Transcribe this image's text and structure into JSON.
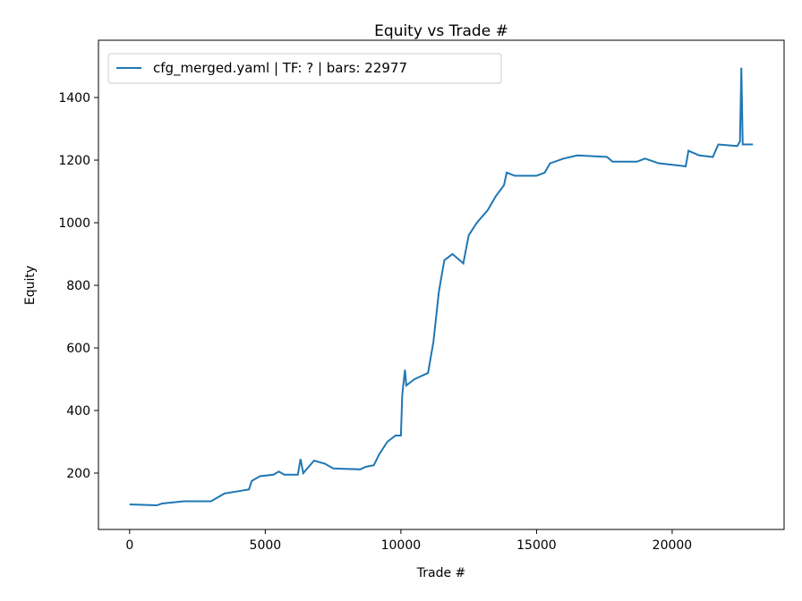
{
  "chart_data": {
    "type": "line",
    "title": "Equity vs Trade #",
    "xlabel": "Trade #",
    "ylabel": "Equity",
    "x": [
      0,
      1000,
      1200,
      2000,
      3000,
      3200,
      3500,
      4000,
      4400,
      4500,
      4800,
      5300,
      5500,
      5700,
      6200,
      6300,
      6400,
      6800,
      7200,
      7500,
      8500,
      8700,
      9000,
      9200,
      9500,
      9800,
      10000,
      10050,
      10150,
      10200,
      10500,
      11000,
      11200,
      11400,
      11600,
      11900,
      12300,
      12500,
      12800,
      13200,
      13500,
      13800,
      13900,
      14200,
      15000,
      15300,
      15500,
      16000,
      16500,
      17600,
      17800,
      18700,
      19000,
      19500,
      20000,
      20500,
      20600,
      21000,
      21500,
      21700,
      22400,
      22500,
      22550,
      22600,
      22977
    ],
    "series": [
      {
        "name": "cfg_merged.yaml | TF: ? | bars: 22977",
        "color": "#1f77b4",
        "values": [
          100,
          97,
          103,
          110,
          110,
          120,
          135,
          142,
          148,
          175,
          190,
          195,
          205,
          195,
          195,
          245,
          200,
          240,
          230,
          215,
          212,
          220,
          225,
          260,
          300,
          320,
          320,
          450,
          530,
          480,
          500,
          520,
          620,
          780,
          880,
          900,
          870,
          960,
          1000,
          1040,
          1085,
          1120,
          1160,
          1150,
          1150,
          1160,
          1190,
          1205,
          1215,
          1210,
          1195,
          1195,
          1205,
          1190,
          1185,
          1180,
          1230,
          1215,
          1210,
          1250,
          1245,
          1260,
          1495,
          1250,
          1250
        ]
      }
    ],
    "xlim": [
      -1149,
      24126
    ],
    "xticks": [
      0,
      5000,
      10000,
      15000,
      20000
    ],
    "ylim": [
      20,
      1583
    ],
    "yticks": [
      200,
      400,
      600,
      800,
      1000,
      1200,
      1400
    ],
    "legend": "upper left",
    "grid": false
  }
}
